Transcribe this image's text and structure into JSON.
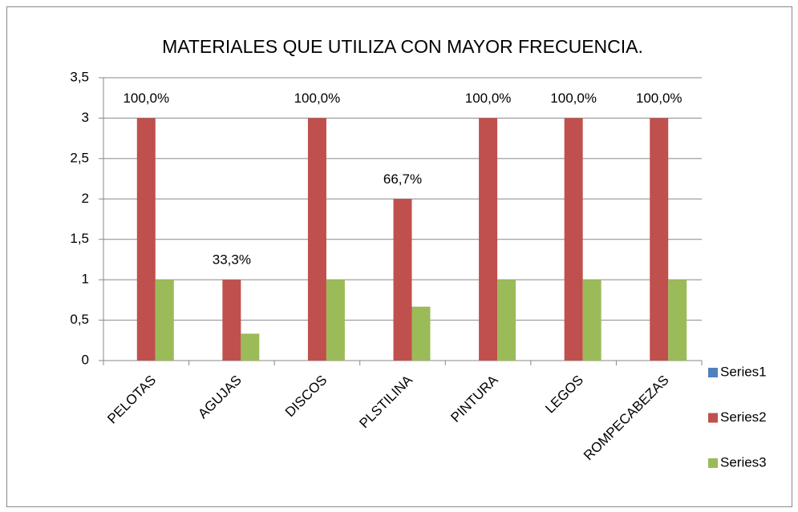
{
  "chart_data": {
    "type": "bar",
    "title": "MATERIALES QUE UTILIZA CON MAYOR FRECUENCIA.",
    "categories": [
      "PELOTAS",
      "AGUJAS",
      "DISCOS",
      "PLSTILINA",
      "PINTURA",
      "LEGOS",
      "ROMPECABEZAS"
    ],
    "series": [
      {
        "name": "Series1",
        "color": "#4f81bd",
        "values": [
          0,
          0,
          0,
          0,
          0,
          0,
          0
        ]
      },
      {
        "name": "Series2",
        "color": "#c0504d",
        "values": [
          3,
          1,
          3,
          2,
          3,
          3,
          3
        ]
      },
      {
        "name": "Series3",
        "color": "#9bbb59",
        "values": [
          1,
          0.333,
          1,
          0.667,
          1,
          1,
          1
        ],
        "value_labels": [
          "100,0%",
          "33,3%",
          "100,0%",
          "66,7%",
          "100,0%",
          "100,0%",
          "100,0%"
        ]
      }
    ],
    "ylim": [
      0,
      3.5
    ],
    "yticks": [
      0,
      {
        "value": 0.5,
        "label": "0,5"
      },
      1,
      {
        "value": 1.5,
        "label": "1,5"
      },
      2,
      {
        "value": 2.5,
        "label": "2,5"
      },
      3,
      {
        "value": 3.5,
        "label": "3,5"
      }
    ],
    "grid": true,
    "legend": "right"
  }
}
